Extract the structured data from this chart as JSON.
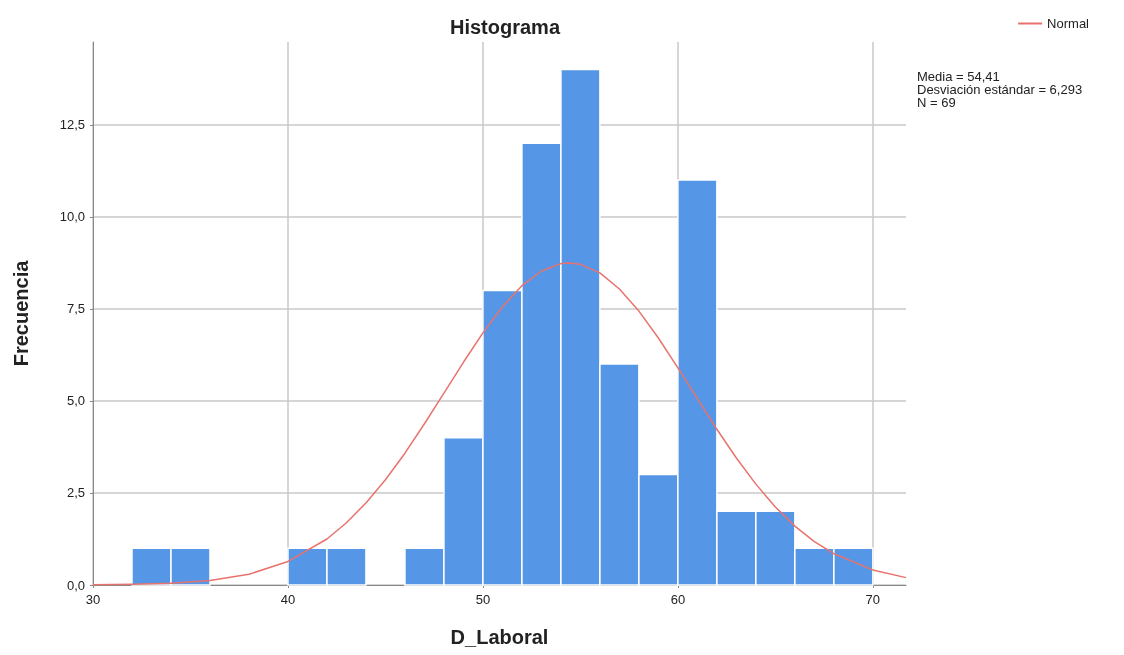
{
  "chart_data": {
    "type": "histogram",
    "title": "Histograma",
    "xlabel": "D_Laboral",
    "ylabel": "Frecuencia",
    "bins": [
      32,
      34,
      36,
      38,
      40,
      42,
      44,
      46,
      48,
      50,
      52,
      54,
      56,
      58,
      60,
      62,
      64,
      66,
      68,
      70
    ],
    "values": [
      1,
      1,
      0,
      0,
      1,
      1,
      0,
      1,
      4,
      8,
      12,
      14,
      6,
      3,
      11,
      2,
      2,
      1,
      1
    ],
    "color": "#5596e6",
    "series": [
      {
        "type": "line",
        "name": "Normal",
        "color": "#e8736e",
        "x": [
          30,
          32,
          34,
          36,
          38,
          40,
          42,
          43,
          44,
          45,
          46,
          47,
          48,
          49,
          50,
          51,
          52,
          53,
          54,
          54.41,
          55,
          56,
          57,
          58,
          59,
          60,
          61,
          62,
          63,
          64,
          65,
          66,
          67,
          68,
          70,
          71.7
        ],
        "values": [
          0.01,
          0.02,
          0.05,
          0.12,
          0.29,
          0.64,
          1.25,
          1.69,
          2.23,
          2.86,
          3.58,
          4.38,
          5.21,
          6.05,
          6.85,
          7.56,
          8.13,
          8.53,
          8.73,
          8.75,
          8.71,
          8.48,
          8.04,
          7.44,
          6.71,
          5.9,
          5.06,
          4.23,
          3.45,
          2.74,
          2.12,
          1.6,
          1.18,
          0.85,
          0.41,
          0.2
        ]
      }
    ],
    "xlim": [
      30,
      71.7
    ],
    "xticks": [
      30,
      40,
      50,
      60,
      70
    ],
    "ylim": [
      0,
      14.75
    ],
    "yticks": [
      {
        "value": 0,
        "label": "0,0"
      },
      {
        "value": 2.5,
        "label": "2,5"
      },
      {
        "value": 5,
        "label": "5,0"
      },
      {
        "value": 7.5,
        "label": "7,5"
      },
      {
        "value": 10,
        "label": "10,0"
      },
      {
        "value": 12.5,
        "label": "12,5"
      }
    ],
    "grid": true,
    "legend": "top right",
    "annotations": [
      "Media = 54,41\nDesviación estándar = 6,293\nN = 69"
    ]
  }
}
